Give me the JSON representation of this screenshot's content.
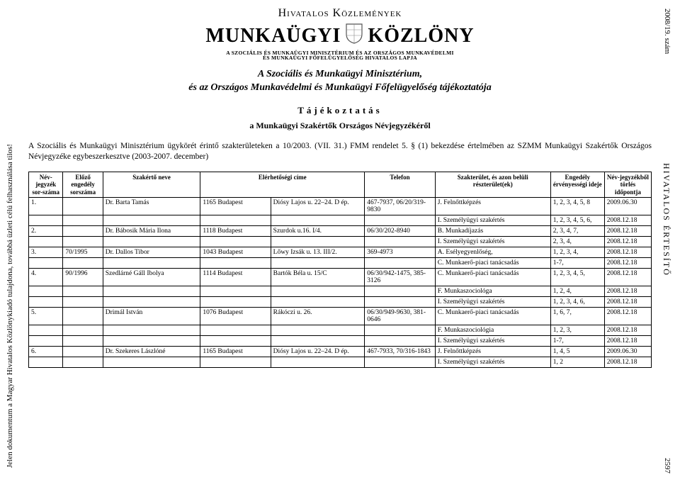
{
  "side": {
    "left": "Jelen dokumentum a Magyar Hivatalos Közlönykiadó tulajdona, továbbá üzleti célú felhasználása tilos!",
    "right_top": "2008/19. szám",
    "right_mid": "HIVATALOS ÉRTESÍTŐ",
    "right_bot": "2597"
  },
  "header": {
    "title": "Hivatalos Közlemények",
    "logo_left": "MUNKAÜGYI",
    "logo_right": "KÖZLÖNY",
    "logo_sub1": "A SZOCIÁLIS ÉS MUNKAÜGYI MINISZTÉRIUM ÉS AZ ORSZÁGOS MUNKAVÉDELMI",
    "logo_sub2": "ÉS MUNKAÜGYI FŐFELÜGYELŐSÉG HIVATALOS LAPJA",
    "subtitle1": "A Szociális és Munkaügyi Minisztérium,",
    "subtitle2": "és az Országos Munkavédelmi és Munkaügyi Főfelügyelőség tájékoztatója",
    "spaced": "Tájékoztatás",
    "sub_spaced": "a Munkaügyi Szakértők Országos Névjegyzékéről",
    "paragraph": "A Szociális és Munkaügyi Minisztérium ügykörét érintő szakterületeken a 10/2003. (VII. 31.) FMM rendelet 5. § (1) bekezdése értelmében az SZMM Munkaügyi Szakértők Országos Névjegyzéke egybeszerkesztve (2003-2007. december)"
  },
  "table": {
    "headers": {
      "c0": "Név-jegyzék sor-száma",
      "c1": "Előző engedély sorszáma",
      "c2": "Szakértő neve",
      "c3": "Elérhetőségi címe",
      "c4": "Telefon",
      "c5": "Szakterület, és azon belüli részterület(ek)",
      "c6": "Engedély érvényességi ideje",
      "c7": "Név-jegyzékből törlés időpontja"
    },
    "rows": [
      {
        "n": "1.",
        "prev": "",
        "name": "Dr. Barta Tamás",
        "addr1": "1165 Budapest",
        "addr2": "Diósy Lajos u. 22–24. D ép.",
        "phone": "467-7937, 06/20/319-9830",
        "area": "J. Felnőttképzés",
        "valid": "1, 2, 3, 4, 5, 8",
        "del": "2009.06.30"
      },
      {
        "n": "",
        "prev": "",
        "name": "",
        "addr1": "",
        "addr2": "",
        "phone": "",
        "area": "I. Személyügyi szakértés",
        "valid": "1, 2, 3, 4, 5, 6,",
        "del": "2008.12.18"
      },
      {
        "n": "2.",
        "prev": "",
        "name": "Dr. Bábosik Mária Ilona",
        "addr1": "1118 Budapest",
        "addr2": "Szurdok u.16. I/4.",
        "phone": "06/30/202-8940",
        "area": "B. Munkadíjazás",
        "valid": "2, 3, 4, 7,",
        "del": "2008.12.18"
      },
      {
        "n": "",
        "prev": "",
        "name": "",
        "addr1": "",
        "addr2": "",
        "phone": "",
        "area": "I. Személyügyi szakértés",
        "valid": "2, 3, 4,",
        "del": "2008.12.18"
      },
      {
        "n": "3.",
        "prev": "70/1995",
        "name": "Dr. Dallos Tibor",
        "addr1": "1043 Budapest",
        "addr2": "Lőwy Izsák u. 13. III/2.",
        "phone": "369-4973",
        "area": "A. Esélyegyenlőség,",
        "valid": "1, 2, 3, 4,",
        "del": "2008.12.18"
      },
      {
        "n": "",
        "prev": "",
        "name": "",
        "addr1": "",
        "addr2": "",
        "phone": "",
        "area": "C. Munkaerő-piaci tanácsadás",
        "valid": "1-7,",
        "del": "2008.12.18"
      },
      {
        "n": "4.",
        "prev": "90/1996",
        "name": "Szedlárné Gáll Ibolya",
        "addr1": "1114 Budapest",
        "addr2": "Bartók Béla u. 15/C",
        "phone": "06/30/942-1475, 385-3126",
        "area": "C. Munkaerő-piaci tanácsadás",
        "valid": "1, 2, 3, 4, 5,",
        "del": "2008.12.18"
      },
      {
        "n": "",
        "prev": "",
        "name": "",
        "addr1": "",
        "addr2": "",
        "phone": "",
        "area": "F. Munkaszociológa",
        "valid": "1, 2, 4,",
        "del": "2008.12.18"
      },
      {
        "n": "",
        "prev": "",
        "name": "",
        "addr1": "",
        "addr2": "",
        "phone": "",
        "area": "I. Személyügyi szakértés",
        "valid": "1, 2, 3, 4, 6,",
        "del": "2008.12.18"
      },
      {
        "n": "5.",
        "prev": "",
        "name": "Drimál István",
        "addr1": "1076 Budapest",
        "addr2": "Rákóczi u. 26.",
        "phone": "06/30/949-9630, 381-0646",
        "area": "C. Munkaerő-piaci tanácsadás",
        "valid": "1, 6, 7,",
        "del": "2008.12.18"
      },
      {
        "n": "",
        "prev": "",
        "name": "",
        "addr1": "",
        "addr2": "",
        "phone": "",
        "area": "F. Munkaszociológia",
        "valid": "1, 2, 3,",
        "del": "2008.12.18"
      },
      {
        "n": "",
        "prev": "",
        "name": "",
        "addr1": "",
        "addr2": "",
        "phone": "",
        "area": "I. Személyügyi szakértés",
        "valid": "1-7,",
        "del": "2008.12.18"
      },
      {
        "n": "6.",
        "prev": "",
        "name": "Dr. Szekeres Lászlóné",
        "addr1": "1165 Budapest",
        "addr2": "Diósy Lajos u. 22–24. D ép.",
        "phone": "467-7933, 70/316-1843",
        "area": "J. Felnőttképzés",
        "valid": "1, 4, 5",
        "del": "2009.06.30"
      },
      {
        "n": "",
        "prev": "",
        "name": "",
        "addr1": "",
        "addr2": "",
        "phone": "",
        "area": "I. Személyügyi szakértés",
        "valid": "1, 2",
        "del": "2008.12.18"
      }
    ]
  }
}
